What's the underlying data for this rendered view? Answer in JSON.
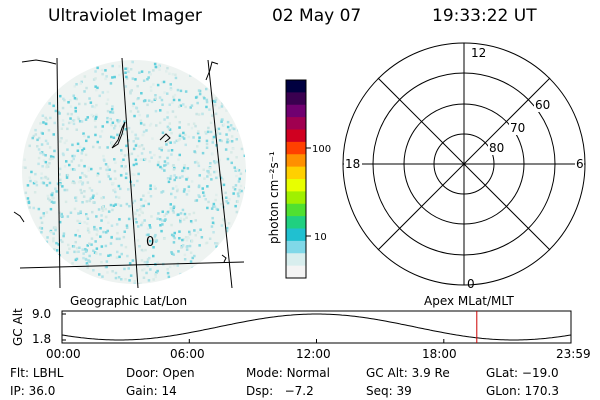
{
  "header": {
    "instrument": "Ultraviolet Imager",
    "date": "02 May 07",
    "time": "19:33:22 UT"
  },
  "geo_panel": {
    "label": "Geographic Lat/Lon",
    "grid_mark": "0"
  },
  "colorbar": {
    "unit_label": "photon cm⁻²s⁻¹",
    "ticks": [
      "100",
      "10"
    ],
    "colors": [
      "#000040",
      "#3a0050",
      "#700070",
      "#a00050",
      "#d00020",
      "#ff4000",
      "#ff9000",
      "#ffd000",
      "#e8ff00",
      "#a0f000",
      "#50e030",
      "#20d080",
      "#20c0d0",
      "#80d8e8",
      "#d8eeee",
      "#f4f4f4"
    ]
  },
  "polar_panel": {
    "label": "Apex MLat/MLT",
    "mlt_labels": {
      "top": "12",
      "left": "18",
      "right": "6",
      "bottom": "0"
    },
    "lat_labels": [
      "60",
      "70",
      "80"
    ]
  },
  "orbit_plot": {
    "y_axis_label": "GC Alt",
    "y_ticks": [
      "9.0",
      "1.8"
    ],
    "x_ticks": [
      "00:00",
      "06:00",
      "12:00",
      "18:00",
      "23:59"
    ],
    "marker_time_hours": 19.56
  },
  "status": {
    "row1": [
      {
        "label": "Flt:",
        "value": "LBHL"
      },
      {
        "label": "Door:",
        "value": "Open"
      },
      {
        "label": "Mode:",
        "value": "Normal"
      },
      {
        "label": "GC Alt:",
        "value": "3.9 Re"
      },
      {
        "label": "GLat:",
        "value": "−19.0"
      }
    ],
    "row2": [
      {
        "label": "IP:",
        "value": "36.0"
      },
      {
        "label": "Gain:",
        "value": "14"
      },
      {
        "label": "Dsp:",
        "value": "  −7.2"
      },
      {
        "label": "Seq:",
        "value": "39"
      },
      {
        "label": "GLon:",
        "value": "170.3"
      }
    ]
  }
}
